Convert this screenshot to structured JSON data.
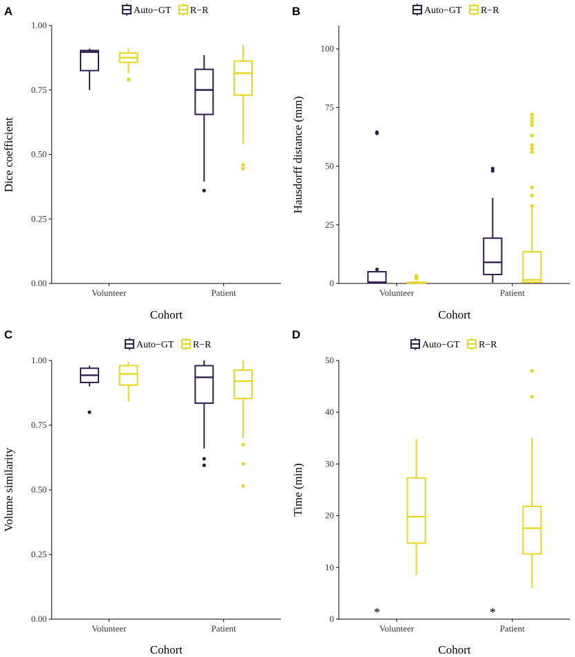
{
  "figure": {
    "colors": {
      "auto_gt": "#2d1b4e",
      "r_r": "#e8d51e",
      "axis": "#000000"
    }
  },
  "chart_data": [
    {
      "panel": "A",
      "type": "box",
      "xlabel": "Cohort",
      "ylabel": "Dice coefficient",
      "categories": [
        "Volunteer",
        "Patient"
      ],
      "legend": [
        "Auto−GT",
        "R−R"
      ],
      "ylim": [
        0,
        1
      ],
      "yticks": [
        0,
        0.25,
        0.5,
        0.75,
        1.0
      ],
      "ytick_labels": [
        "0.00",
        "0.25",
        "0.50",
        "0.75",
        "1.00"
      ],
      "series": [
        {
          "name": "Auto−GT",
          "boxes": [
            {
              "category": "Volunteer",
              "whisker_low": 0.75,
              "q1": 0.825,
              "median": 0.897,
              "q3": 0.903,
              "whisker_high": 0.91,
              "outliers": []
            },
            {
              "category": "Patient",
              "whisker_low": 0.395,
              "q1": 0.655,
              "median": 0.75,
              "q3": 0.83,
              "whisker_high": 0.885,
              "outliers": [
                0.36
              ]
            }
          ]
        },
        {
          "name": "R−R",
          "boxes": [
            {
              "category": "Volunteer",
              "whisker_low": 0.815,
              "q1": 0.857,
              "median": 0.875,
              "q3": 0.893,
              "whisker_high": 0.91,
              "outliers": [
                0.79
              ]
            },
            {
              "category": "Patient",
              "whisker_low": 0.54,
              "q1": 0.73,
              "median": 0.815,
              "q3": 0.862,
              "whisker_high": 0.925,
              "outliers": [
                0.46,
                0.445
              ]
            }
          ]
        }
      ]
    },
    {
      "panel": "B",
      "type": "box",
      "xlabel": "Cohort",
      "ylabel": "Hausdorff distance (mm)",
      "categories": [
        "Volunteer",
        "Patient"
      ],
      "legend": [
        "Auto−GT",
        "R−R"
      ],
      "ylim": [
        0,
        110
      ],
      "yticks": [
        0,
        25,
        50,
        75,
        100
      ],
      "ytick_labels": [
        "0",
        "25",
        "50",
        "75",
        "100"
      ],
      "series": [
        {
          "name": "Auto−GT",
          "boxes": [
            {
              "category": "Volunteer",
              "whisker_low": 0,
              "q1": 0.2,
              "median": 0.5,
              "q3": 5.0,
              "whisker_high": 5.0,
              "outliers": [
                6.0,
                64.5,
                64.0
              ]
            },
            {
              "category": "Patient",
              "whisker_low": 0.3,
              "q1": 3.8,
              "median": 9.0,
              "q3": 19.3,
              "whisker_high": 36.5,
              "outliers": [
                48.0,
                49.0
              ]
            }
          ]
        },
        {
          "name": "R−R",
          "boxes": [
            {
              "category": "Volunteer",
              "whisker_low": 0,
              "q1": 0.2,
              "median": 0.3,
              "q3": 0.5,
              "whisker_high": 1.0,
              "outliers": [
                2.0,
                2.5,
                3.3
              ]
            },
            {
              "category": "Patient",
              "whisker_low": 0,
              "q1": 0.5,
              "median": 1.5,
              "q3": 13.5,
              "whisker_high": 32.0,
              "outliers": [
                33.0,
                37.5,
                41.0,
                56.0,
                57.5,
                59.0,
                63.0,
                67.5,
                69.0,
                70.5,
                72.0
              ]
            }
          ]
        }
      ]
    },
    {
      "panel": "C",
      "type": "box",
      "xlabel": "Cohort",
      "ylabel": "Volume similarity",
      "categories": [
        "Volunteer",
        "Patient"
      ],
      "legend": [
        "Auto−GT",
        "R−R"
      ],
      "ylim": [
        0,
        1
      ],
      "yticks": [
        0,
        0.25,
        0.5,
        0.75,
        1.0
      ],
      "ytick_labels": [
        "0.00",
        "0.25",
        "0.50",
        "0.75",
        "1.00"
      ],
      "series": [
        {
          "name": "Auto−GT",
          "boxes": [
            {
              "category": "Volunteer",
              "whisker_low": 0.9,
              "q1": 0.915,
              "median": 0.943,
              "q3": 0.97,
              "whisker_high": 0.98,
              "outliers": [
                0.8
              ]
            },
            {
              "category": "Patient",
              "whisker_low": 0.66,
              "q1": 0.835,
              "median": 0.935,
              "q3": 0.98,
              "whisker_high": 1.0,
              "outliers": [
                0.62,
                0.595
              ]
            }
          ]
        },
        {
          "name": "R−R",
          "boxes": [
            {
              "category": "Volunteer",
              "whisker_low": 0.84,
              "q1": 0.905,
              "median": 0.948,
              "q3": 0.98,
              "whisker_high": 0.995,
              "outliers": []
            },
            {
              "category": "Patient",
              "whisker_low": 0.7,
              "q1": 0.853,
              "median": 0.92,
              "q3": 0.963,
              "whisker_high": 1.0,
              "outliers": [
                0.675,
                0.6,
                0.515
              ]
            }
          ]
        }
      ]
    },
    {
      "panel": "D",
      "type": "box",
      "xlabel": "Cohort",
      "ylabel": "Time (min)",
      "categories": [
        "Volunteer",
        "Patient"
      ],
      "legend": [
        "Auto−GT",
        "R−R"
      ],
      "ylim": [
        0,
        50
      ],
      "yticks": [
        0,
        10,
        20,
        30,
        40,
        50
      ],
      "ytick_labels": [
        "0",
        "10",
        "20",
        "30",
        "40",
        "50"
      ],
      "annotations": [
        {
          "category": "Volunteer",
          "series": "Auto−GT",
          "text": "*",
          "y": 0
        },
        {
          "category": "Patient",
          "series": "Auto−GT",
          "text": "*",
          "y": 0
        }
      ],
      "series": [
        {
          "name": "Auto−GT",
          "boxes": []
        },
        {
          "name": "R−R",
          "boxes": [
            {
              "category": "Volunteer",
              "whisker_low": 8.5,
              "q1": 14.7,
              "median": 19.8,
              "q3": 27.3,
              "whisker_high": 34.8,
              "outliers": []
            },
            {
              "category": "Patient",
              "whisker_low": 6.0,
              "q1": 12.6,
              "median": 17.6,
              "q3": 21.8,
              "whisker_high": 35.0,
              "outliers": [
                43.0,
                48.0
              ]
            }
          ]
        }
      ]
    }
  ]
}
